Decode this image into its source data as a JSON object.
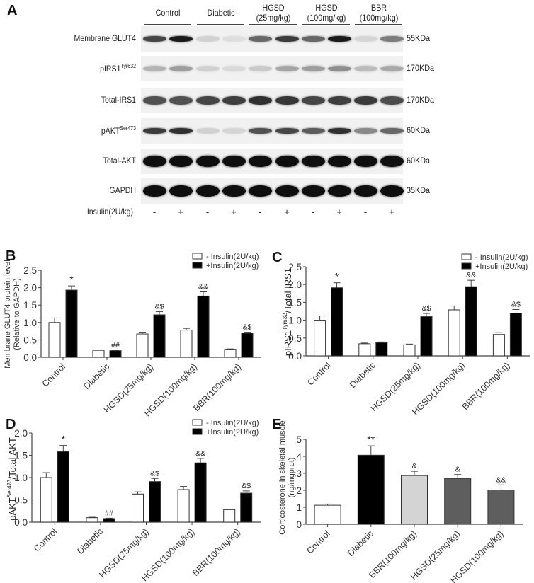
{
  "panel_a": {
    "letter": "A",
    "groups": [
      {
        "line1": "Control",
        "line2": ""
      },
      {
        "line1": "Diabetic",
        "line2": ""
      },
      {
        "line1": "HGSD",
        "line2": "(25mg/kg)"
      },
      {
        "line1": "HGSD",
        "line2": "(100mg/kg)"
      },
      {
        "line1": "BBR",
        "line2": "(100mg/kg)"
      }
    ],
    "rows": [
      {
        "label": "Membrane GLUT4",
        "sup": "",
        "kda": "55KDa",
        "intensities": [
          0.75,
          0.95,
          0.12,
          0.06,
          0.6,
          0.8,
          0.6,
          0.95,
          0.1,
          0.5
        ]
      },
      {
        "label": "pIRS1",
        "sup": "Tyr632",
        "kda": "170KDa",
        "intensities": [
          0.25,
          0.35,
          0.12,
          0.08,
          0.15,
          0.32,
          0.35,
          0.42,
          0.22,
          0.3
        ]
      },
      {
        "label": "Total-IRS1",
        "sup": "",
        "kda": "170KDa",
        "intensities": [
          0.7,
          0.7,
          0.75,
          0.78,
          0.85,
          0.82,
          0.75,
          0.78,
          0.8,
          0.72
        ]
      },
      {
        "label": "pAKT",
        "sup": "Ser473",
        "kda": "60KDa",
        "intensities": [
          0.8,
          0.85,
          0.12,
          0.1,
          0.7,
          0.75,
          0.65,
          0.85,
          0.45,
          0.6
        ]
      },
      {
        "label": "Total-AKT",
        "sup": "",
        "kda": "60KDa",
        "intensities": [
          1,
          1,
          1,
          1,
          1,
          1,
          1,
          1,
          1,
          1
        ]
      },
      {
        "label": "GAPDH",
        "sup": "",
        "kda": "35KDa",
        "intensities": [
          1,
          1,
          1,
          1,
          1,
          1,
          1,
          1,
          1,
          1
        ]
      }
    ],
    "insulin_label": "Insulin(2U/kg)",
    "insulin_signs": [
      "-",
      "+",
      "-",
      "+",
      "-",
      "+",
      "-",
      "+",
      "-",
      "+"
    ]
  },
  "chart_data": [
    {
      "panel": "B",
      "type": "bar",
      "title": "",
      "ylabel": "Membrane GLUT4 protein level (Relative to GAPDH)",
      "ylabel_line1": "Membrane GLUT4 protein level",
      "ylabel_line2": "(Relative to GAPDH)",
      "xlabel": "",
      "ylim": [
        0,
        2.5
      ],
      "yticks": [
        "0.0",
        "0.5",
        "1.0",
        "1.5",
        "2.0",
        "2.5"
      ],
      "categories": [
        "Control",
        "Diabetic",
        "HGSD(25mg/kg)",
        "HGSD(100mg/kg)",
        "BBR(100mg/kg)"
      ],
      "legend": [
        "- Insulin(2U/kg)",
        "+Insulin(2U/kg)"
      ],
      "legend_position": "top-right",
      "series": [
        {
          "name": "- Insulin(2U/kg)",
          "color": "#ffffff",
          "values": [
            1.0,
            0.2,
            0.67,
            0.78,
            0.23
          ],
          "errors": [
            0.13,
            0.01,
            0.05,
            0.05,
            0.01
          ],
          "annotations": [
            "",
            "",
            "",
            "",
            ""
          ]
        },
        {
          "name": "+Insulin(2U/kg)",
          "color": "#000000",
          "values": [
            1.93,
            0.19,
            1.22,
            1.76,
            0.69
          ],
          "errors": [
            0.12,
            0.01,
            0.09,
            0.12,
            0.03
          ],
          "annotations": [
            "*",
            "##",
            "&$",
            "&&",
            "&$"
          ]
        }
      ],
      "grid": false
    },
    {
      "panel": "C",
      "type": "bar",
      "title": "",
      "ylabel": "pIRS1 Tyr632/Total IRS1",
      "ylabel_main": "pIRS1",
      "ylabel_sup": "Tyr632",
      "ylabel_tail": "/Total IRS1",
      "xlabel": "",
      "ylim": [
        0,
        2.5
      ],
      "yticks": [
        "0.0",
        "0.5",
        "1.0",
        "1.5",
        "2.0",
        "2.5"
      ],
      "categories": [
        "Control",
        "Diabetic",
        "HGSD(25mg/kg)",
        "HGSD(100mg/kg)",
        "BBR(100mg/kg)"
      ],
      "legend": [
        "- Insulin(2U/kg)",
        "+Insulin(2U/kg)"
      ],
      "legend_position": "top-right",
      "series": [
        {
          "name": "- Insulin(2U/kg)",
          "color": "#ffffff",
          "values": [
            1.0,
            0.34,
            0.31,
            1.29,
            0.6
          ],
          "errors": [
            0.12,
            0.02,
            0.02,
            0.11,
            0.05
          ],
          "annotations": [
            "",
            "",
            "",
            "",
            ""
          ]
        },
        {
          "name": "+Insulin(2U/kg)",
          "color": "#000000",
          "values": [
            1.91,
            0.37,
            1.1,
            1.94,
            1.2
          ],
          "errors": [
            0.14,
            0.02,
            0.09,
            0.18,
            0.1
          ],
          "annotations": [
            "*",
            "",
            "&$",
            "&&",
            "&$"
          ]
        }
      ],
      "grid": false
    },
    {
      "panel": "D",
      "type": "bar",
      "title": "",
      "ylabel": "pAKT Ser473/Total AKT",
      "ylabel_main": "pAKT",
      "ylabel_sup": "Ser473",
      "ylabel_tail": "/Total AKT",
      "xlabel": "",
      "ylim": [
        0,
        2.0
      ],
      "yticks": [
        "0.0",
        "0.5",
        "1.0",
        "1.5",
        "2.0"
      ],
      "categories": [
        "Control",
        "Diabetic",
        "HGSD(25mg/kg)",
        "HGSD(100mg/kg)",
        "BBR(100mg/kg)"
      ],
      "legend": [
        "- Insulin(2U/kg)",
        "+Insulin(2U/kg)"
      ],
      "legend_position": "top-right",
      "series": [
        {
          "name": "- Insulin(2U/kg)",
          "color": "#ffffff",
          "values": [
            1.0,
            0.1,
            0.63,
            0.73,
            0.28
          ],
          "errors": [
            0.11,
            0.01,
            0.05,
            0.07,
            0.01
          ],
          "annotations": [
            "",
            "",
            "",
            "",
            ""
          ]
        },
        {
          "name": "+Insulin(2U/kg)",
          "color": "#000000",
          "values": [
            1.58,
            0.08,
            0.91,
            1.33,
            0.65
          ],
          "errors": [
            0.14,
            0.01,
            0.07,
            0.1,
            0.05
          ],
          "annotations": [
            "*",
            "##",
            "&$",
            "&&",
            "&$"
          ]
        }
      ],
      "grid": false
    },
    {
      "panel": "E",
      "type": "bar",
      "title": "",
      "ylabel": "Corticosterone in skeletal muscle (ng/mgprot)",
      "ylabel_line1": "Corticosterone in skeletal muscle",
      "ylabel_line2": "(ng/mgprot)",
      "xlabel": "",
      "ylim": [
        0,
        5
      ],
      "yticks": [
        "0",
        "1",
        "2",
        "3",
        "4",
        "5"
      ],
      "categories": [
        "Control",
        "Diabetic",
        "BBR(100mg/kg)",
        "HGSD(25mg/kg)",
        "HGSD(100mg/kg)"
      ],
      "values": [
        1.12,
        4.07,
        2.87,
        2.7,
        2.02
      ],
      "errors": [
        0.07,
        0.55,
        0.25,
        0.23,
        0.3
      ],
      "colors": [
        "#ffffff",
        "#000000",
        "#d4d4d4",
        "#5e5e5e",
        "#5e5e5e"
      ],
      "annotations": [
        "",
        "**",
        "&",
        "&",
        "&&"
      ],
      "grid": false
    }
  ]
}
